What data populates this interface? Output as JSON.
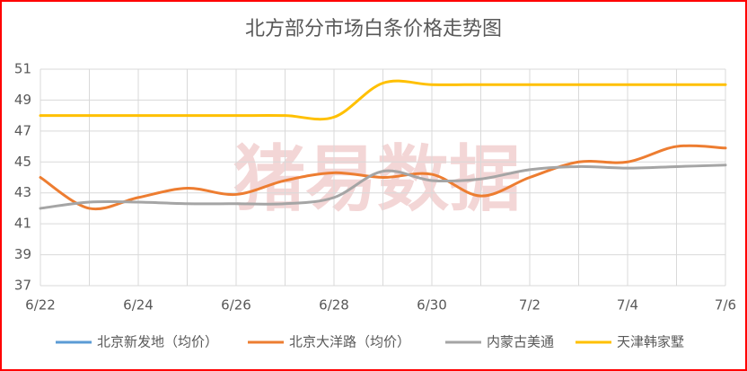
{
  "chart_data": {
    "type": "line",
    "title": "北方部分市场白条价格走势图",
    "watermark": "猪易数据",
    "categories": [
      "6/22",
      null,
      "6/24",
      null,
      "6/26",
      null,
      "6/28",
      null,
      "6/30",
      null,
      "7/2",
      null,
      "7/4",
      null,
      "7/6"
    ],
    "series": [
      {
        "name": "北京新发地（均价）",
        "color": "#5b9bd5",
        "values": [
          null,
          null,
          null,
          null,
          null,
          null,
          null,
          null,
          null,
          null,
          null,
          null,
          null,
          null,
          null
        ]
      },
      {
        "name": "北京大洋路（均价）",
        "color": "#ed7d31",
        "values": [
          44.0,
          42.0,
          42.7,
          43.3,
          42.9,
          43.8,
          44.3,
          44.0,
          44.2,
          42.8,
          44.0,
          45.0,
          45.0,
          46.0,
          45.9
        ]
      },
      {
        "name": "内蒙古美通",
        "color": "#a5a5a5",
        "values": [
          42.0,
          42.4,
          42.4,
          42.3,
          42.3,
          42.3,
          42.7,
          44.4,
          43.8,
          43.9,
          44.5,
          44.7,
          44.6,
          44.7,
          44.8
        ]
      },
      {
        "name": "天津韩家墅",
        "color": "#ffc000",
        "values": [
          48.0,
          48.0,
          48.0,
          48.0,
          48.0,
          48.0,
          47.9,
          50.1,
          50.0,
          50.0,
          50.0,
          50.0,
          50.0,
          50.0,
          50.0
        ]
      }
    ],
    "ylim": [
      37,
      51
    ],
    "yticks": [
      37,
      39,
      41,
      43,
      45,
      47,
      49,
      51
    ],
    "grid": true
  }
}
